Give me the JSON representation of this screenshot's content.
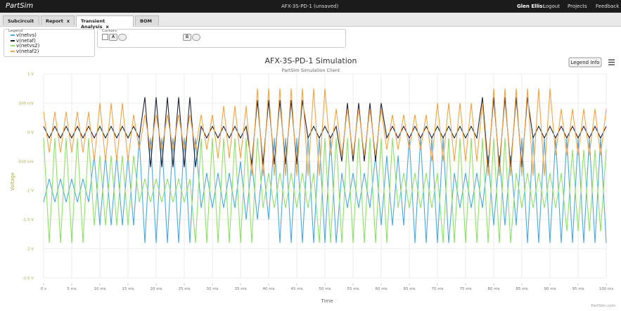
{
  "header": {
    "logo": "PartSim",
    "project": "AFX-3S-PD-1 (unsaved)",
    "user": "Glen Ellis:",
    "logout": "Logout",
    "projects": "Projects",
    "feedback": "Feedback"
  },
  "tabs": [
    {
      "label": "Subcircuit"
    },
    {
      "label": "Report",
      "close": "x"
    },
    {
      "label": "Transient Analysis",
      "close": "x"
    },
    {
      "label": "BOM"
    }
  ],
  "legend_panel": {
    "title": "Legend"
  },
  "cursors": {
    "title": "Cursors",
    "a": "A",
    "b": "B"
  },
  "legend_info": "Legend Info",
  "chart_data": {
    "type": "line",
    "title": "AFX-3S-PD-1 Simulation",
    "subtitle": "PartSim Simulation Client",
    "x_label": "Time",
    "y_label": "Voltage",
    "credits": "PartSim.com",
    "grid": true,
    "xlim": [
      0,
      100
    ],
    "ylim": [
      -2.5,
      1
    ],
    "xticks": [
      {
        "value": 0,
        "label": "0 s"
      },
      {
        "value": 5,
        "label": "5 ms"
      },
      {
        "value": 10,
        "label": "10 ms"
      },
      {
        "value": 15,
        "label": "15 ms"
      },
      {
        "value": 20,
        "label": "20 ms"
      },
      {
        "value": 25,
        "label": "25 ms"
      },
      {
        "value": 30,
        "label": "30 ms"
      },
      {
        "value": 35,
        "label": "35 ms"
      },
      {
        "value": 40,
        "label": "40 ms"
      },
      {
        "value": 45,
        "label": "45 ms"
      },
      {
        "value": 50,
        "label": "50 ms"
      },
      {
        "value": 55,
        "label": "55 ms"
      },
      {
        "value": 60,
        "label": "60 ms"
      },
      {
        "value": 65,
        "label": "65 ms"
      },
      {
        "value": 70,
        "label": "70 ms"
      },
      {
        "value": 75,
        "label": "75 ms"
      },
      {
        "value": 80,
        "label": "80 ms"
      },
      {
        "value": 85,
        "label": "85 ms"
      },
      {
        "value": 90,
        "label": "90 ms"
      },
      {
        "value": 95,
        "label": "95 ms"
      },
      {
        "value": 100,
        "label": "100 ms"
      }
    ],
    "yticks": [
      {
        "value": 1,
        "label": "1 V"
      },
      {
        "value": 0.5,
        "label": "500 mV"
      },
      {
        "value": 0,
        "label": "0 V"
      },
      {
        "value": -0.5,
        "label": "-500 mV"
      },
      {
        "value": -1,
        "label": "-1 V"
      },
      {
        "value": -1.5,
        "label": "-1.5 V"
      },
      {
        "value": -2,
        "label": "-2 V"
      },
      {
        "value": -2.5,
        "label": "-2.5 V"
      }
    ],
    "x": [
      0,
      1,
      2,
      3,
      4,
      5,
      6,
      7,
      8,
      9,
      10,
      11,
      12,
      13,
      14,
      15,
      16,
      17,
      18,
      19,
      20,
      21,
      22,
      23,
      24,
      25,
      26,
      27,
      28,
      29,
      30,
      31,
      32,
      33,
      34,
      35,
      36,
      37,
      38,
      39,
      40,
      41,
      42,
      43,
      44,
      45,
      46,
      47,
      48,
      49,
      50,
      51,
      52,
      53,
      54,
      55,
      56,
      57,
      58,
      59,
      60,
      61,
      62,
      63,
      64,
      65,
      66,
      67,
      68,
      69,
      70,
      71,
      72,
      73,
      74,
      75,
      76,
      77,
      78,
      79,
      80,
      81,
      82,
      83,
      84,
      85,
      86,
      87,
      88,
      89,
      90,
      91,
      92,
      93,
      94,
      95,
      96,
      97,
      98,
      99,
      100
    ],
    "series": [
      {
        "name": "v(netvs)",
        "color": "#4ea8de",
        "values": [
          -1.2,
          -0.8,
          -1.2,
          -0.8,
          -1.2,
          -0.8,
          -1.2,
          -0.8,
          -1.2,
          -0.4,
          -1.6,
          -0.4,
          -1.6,
          -0.4,
          -1.6,
          -0.4,
          -1.6,
          -0.1,
          -1.9,
          -0.1,
          -1.9,
          -0.1,
          -1.9,
          -0.1,
          -1.9,
          -0.1,
          -1.9,
          -0.1,
          -1.3,
          -0.7,
          -1.3,
          -0.7,
          -1.3,
          -0.7,
          -1.3,
          -0.5,
          -1.5,
          -0.5,
          -1.5,
          -0.5,
          -1.5,
          -0.1,
          -1.9,
          -0.1,
          -1.9,
          -0.1,
          -1.9,
          -0.1,
          -1.9,
          -0.1,
          -1.9,
          -0.1,
          -1.9,
          -0.7,
          -1.3,
          -0.7,
          -1.3,
          -0.7,
          -1.3,
          -0.4,
          -1.6,
          -0.4,
          -1.6,
          -0.4,
          -1.6,
          -0.1,
          -1.9,
          -0.1,
          -1.9,
          -0.1,
          -1.9,
          -0.1,
          -1.9,
          -0.7,
          -1.3,
          -0.7,
          -1.3,
          -0.7,
          -1.3,
          -0.4,
          -1.6,
          -0.4,
          -1.6,
          -0.4,
          -1.6,
          -0.1,
          -1.9,
          -0.1,
          -1.9,
          -0.1,
          -1.9,
          -0.1,
          -1.9,
          -0.1,
          -1.9,
          -0.1,
          -1.9,
          -0.1,
          -1.9,
          -0.1,
          -1.9
        ]
      },
      {
        "name": "v(netaf)",
        "color": "#1c2434",
        "values": [
          0.1,
          -0.1,
          0.1,
          -0.1,
          0.1,
          -0.1,
          0.1,
          -0.1,
          0.1,
          -0.1,
          0.1,
          -0.1,
          0.1,
          -0.1,
          0.1,
          -0.1,
          0.1,
          -0.1,
          0.6,
          -0.6,
          0.6,
          -0.6,
          0.6,
          -0.6,
          0.6,
          -0.6,
          0.6,
          -0.6,
          0.1,
          -0.1,
          0.1,
          -0.1,
          0.1,
          -0.1,
          0.1,
          -0.1,
          0.1,
          -0.55,
          0.55,
          -0.55,
          0.55,
          -0.55,
          0.55,
          -0.55,
          0.55,
          -0.55,
          0.55,
          -0.1,
          0.1,
          -0.1,
          0.1,
          -0.1,
          0.1,
          -0.5,
          0.5,
          -0.5,
          0.5,
          -0.5,
          0.5,
          -0.5,
          0.5,
          -0.1,
          0.1,
          -0.1,
          0.1,
          -0.1,
          0.1,
          -0.1,
          0.1,
          -0.1,
          0.1,
          -0.1,
          0.1,
          -0.1,
          0.1,
          -0.1,
          0.1,
          -0.1,
          0.6,
          -0.6,
          0.6,
          -0.6,
          0.6,
          -0.6,
          0.6,
          -0.6,
          0.6,
          -0.1,
          0.1,
          -0.1,
          0.1,
          -0.1,
          0.1,
          -0.1,
          0.1,
          -0.1,
          0.1,
          -0.1,
          0.1,
          -0.1,
          0.1
        ]
      },
      {
        "name": "v(netvs2)",
        "color": "#8ee06a",
        "values": [
          -0.1,
          -1.9,
          -0.1,
          -1.9,
          -0.1,
          -1.9,
          -0.1,
          -1.9,
          -0.1,
          -1.6,
          -0.4,
          -1.6,
          -0.4,
          -1.6,
          -0.4,
          -1.6,
          -0.4,
          -1.2,
          -0.8,
          -1.2,
          -0.8,
          -1.2,
          -0.8,
          -1.2,
          -0.8,
          -1.2,
          -0.8,
          -1.9,
          -0.1,
          -1.9,
          -0.1,
          -1.9,
          -0.1,
          -1.9,
          -0.1,
          -1.9,
          -0.1,
          -1.9,
          -0.1,
          -1.3,
          -0.7,
          -1.3,
          -0.7,
          -1.3,
          -0.7,
          -1.3,
          -0.7,
          -1.3,
          -0.7,
          -1.9,
          -0.1,
          -1.9,
          -0.1,
          -1.9,
          -0.1,
          -1.9,
          -0.1,
          -1.9,
          -0.1,
          -1.9,
          -0.1,
          -1.9,
          -0.1,
          -1.3,
          -0.7,
          -1.3,
          -0.7,
          -1.3,
          -0.7,
          -1.3,
          -0.7,
          -1.9,
          -0.1,
          -1.9,
          -0.1,
          -1.9,
          -0.1,
          -1.9,
          -0.1,
          -1.9,
          -0.1,
          -1.9,
          -0.1,
          -1.9,
          -0.7,
          -1.3,
          -0.7,
          -1.3,
          -0.7,
          -1.3,
          -0.7,
          -1.3,
          -0.7,
          -1.7,
          -0.3,
          -1.7,
          -0.3,
          -1.7,
          -0.3,
          -1.7,
          -0.3
        ]
      },
      {
        "name": "v(netaf2)",
        "color": "#f2a444",
        "values": [
          0.35,
          -0.35,
          0.35,
          -0.35,
          0.35,
          -0.35,
          0.35,
          -0.35,
          0.35,
          -0.5,
          0.5,
          -0.5,
          0.5,
          -0.5,
          0.5,
          -0.5,
          0.3,
          -0.3,
          0.3,
          -0.3,
          0.3,
          -0.3,
          0.3,
          -0.3,
          0.3,
          -0.3,
          0.3,
          -0.3,
          0.3,
          -0.3,
          0.3,
          -0.45,
          0.45,
          -0.45,
          0.45,
          -0.45,
          0.45,
          -0.75,
          0.75,
          -0.75,
          0.75,
          -0.75,
          0.75,
          -0.75,
          0.75,
          -0.75,
          0.75,
          -0.75,
          0.75,
          -0.75,
          0.75,
          -0.4,
          0.4,
          -0.4,
          0.4,
          -0.4,
          0.4,
          -0.4,
          0.4,
          -0.4,
          0.4,
          -0.3,
          0.3,
          -0.3,
          0.3,
          -0.3,
          0.3,
          -0.3,
          0.3,
          -0.5,
          0.5,
          -0.5,
          0.5,
          -0.5,
          0.5,
          -0.5,
          0.5,
          -0.5,
          0.5,
          -0.75,
          0.75,
          -0.75,
          0.75,
          -0.75,
          0.75,
          -0.75,
          0.75,
          -0.75,
          0.75,
          -0.75,
          0.75,
          -0.4,
          0.4,
          -0.4,
          0.4,
          -0.4,
          0.4,
          -0.4,
          0.4,
          -0.4,
          0.4
        ]
      }
    ]
  }
}
